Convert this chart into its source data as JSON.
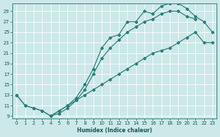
{
  "xlabel": "Humidex (Indice chaleur)",
  "background_color": "#cce8e8",
  "grid_color": "#ffffff",
  "line_color": "#2e7d7d",
  "xlim": [
    -0.5,
    23.5
  ],
  "ylim": [
    8.5,
    30.5
  ],
  "xticks": [
    0,
    1,
    2,
    3,
    4,
    5,
    6,
    7,
    8,
    9,
    10,
    11,
    12,
    13,
    14,
    15,
    16,
    17,
    18,
    19,
    20,
    21,
    22,
    23
  ],
  "yticks": [
    9,
    11,
    13,
    15,
    17,
    19,
    21,
    23,
    25,
    27,
    29
  ],
  "curve1_x": [
    0,
    1,
    2,
    3,
    4,
    5,
    6,
    7,
    8,
    9,
    10,
    11,
    12,
    13,
    14,
    15,
    16,
    17,
    18,
    19,
    20,
    21,
    22,
    23
  ],
  "curve1_y": [
    13,
    11,
    10.5,
    10,
    9,
    10,
    11,
    12.5,
    15,
    18,
    22,
    24,
    24.5,
    27,
    27,
    29,
    28.5,
    30,
    30.5,
    30.5,
    29.5,
    28,
    27,
    25
  ],
  "curve2_x": [
    0,
    1,
    2,
    3,
    4,
    5,
    6,
    7,
    8,
    9,
    10,
    11,
    12,
    13,
    14,
    15,
    16,
    17,
    18,
    19,
    20,
    21
  ],
  "curve2_y": [
    13,
    11,
    10.5,
    10,
    9,
    10,
    11,
    12,
    14,
    17,
    20,
    22,
    23.5,
    25,
    26,
    27,
    27.5,
    28.5,
    29,
    29,
    28,
    27.5
  ],
  "curve3_x": [
    4,
    5,
    6,
    7,
    8,
    9,
    10,
    11,
    12,
    13,
    14,
    15,
    16,
    17,
    18,
    19,
    20,
    21,
    22,
    23
  ],
  "curve3_y": [
    9,
    9.5,
    10.5,
    12,
    13,
    14,
    15,
    16,
    17,
    18,
    19,
    20,
    21,
    21.5,
    22,
    23,
    24,
    25,
    23,
    23
  ]
}
